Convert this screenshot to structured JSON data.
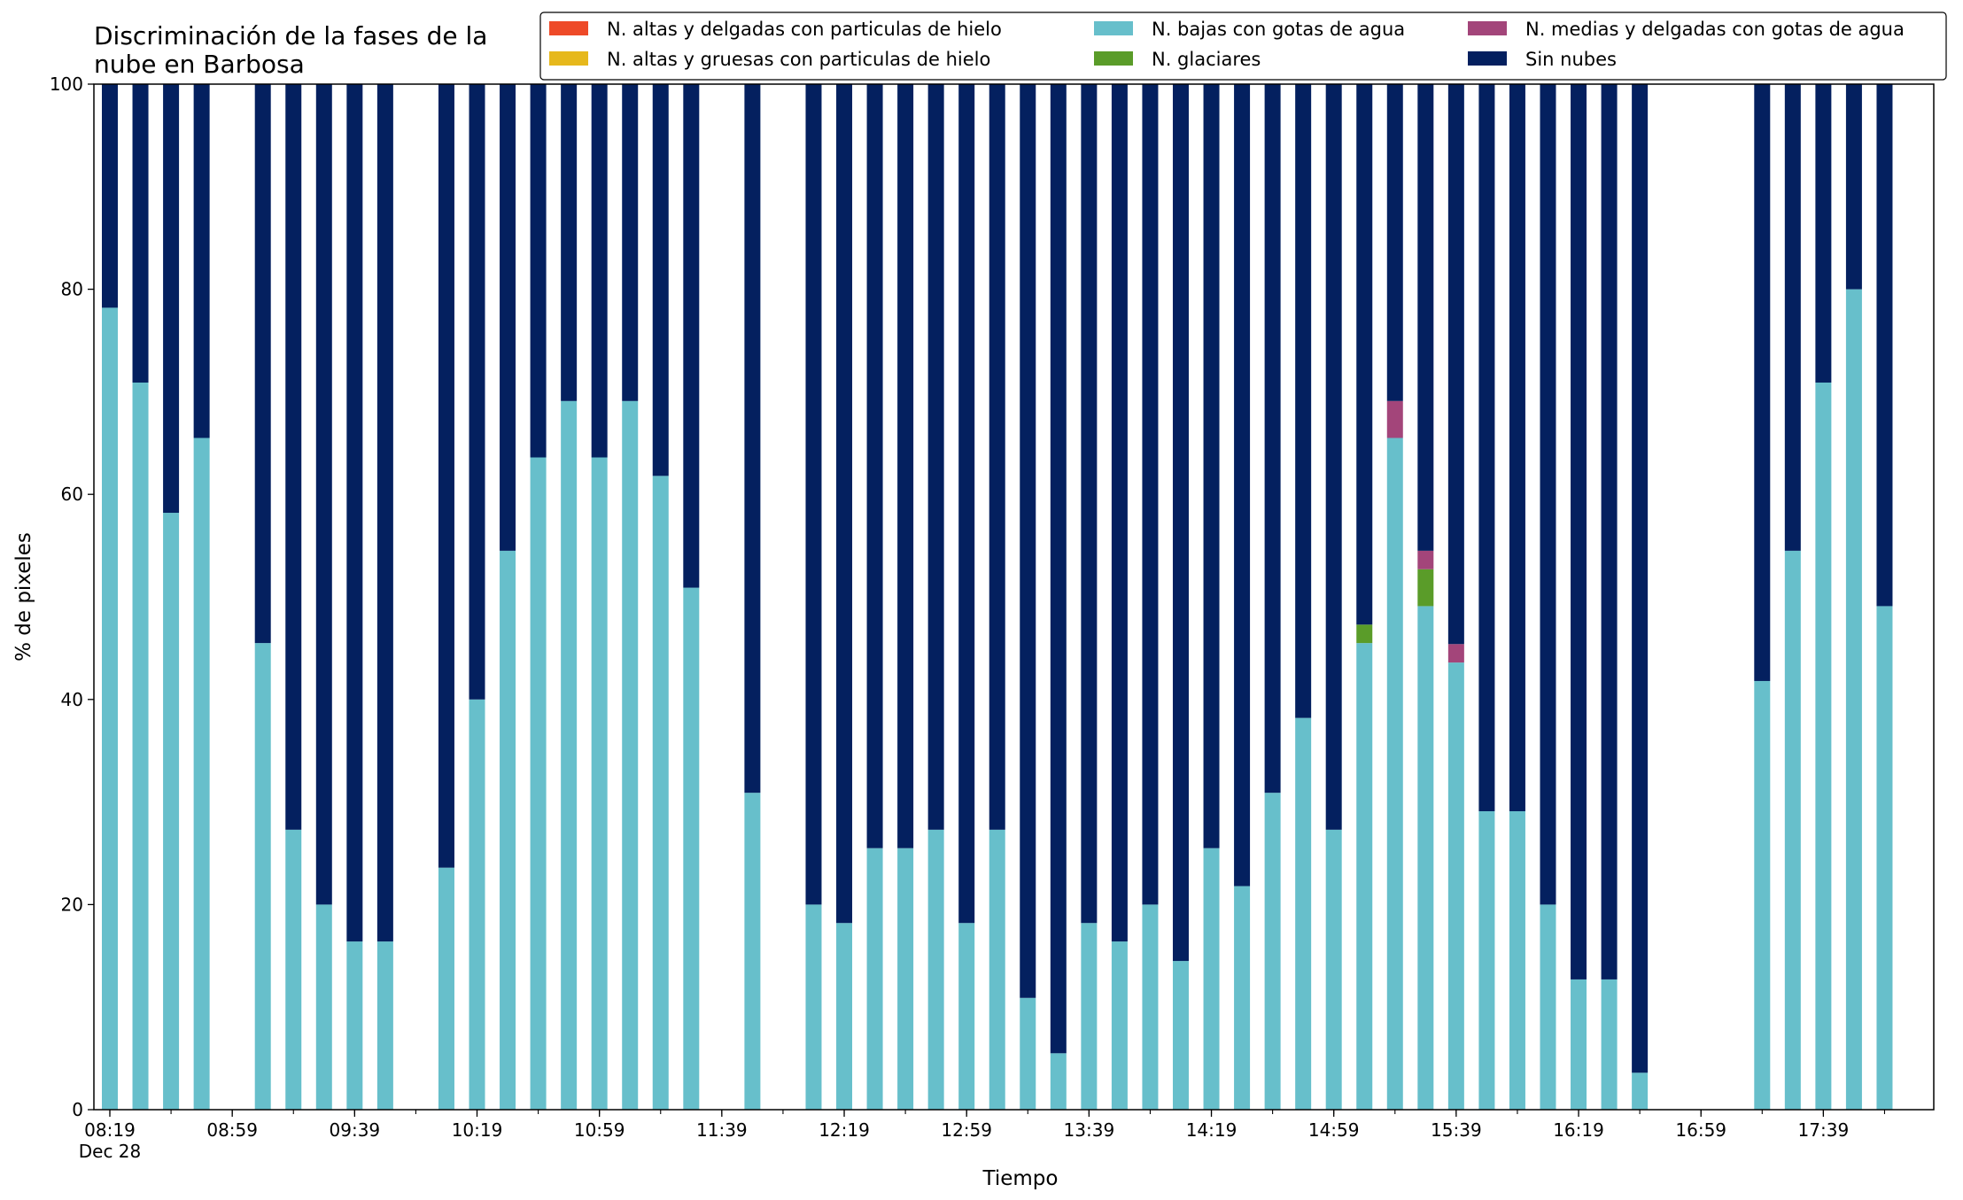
{
  "chart_data": {
    "type": "bar",
    "stacked": true,
    "title_lines": [
      "Discriminación de la fases de la",
      "nube en Barbosa"
    ],
    "xlabel": "Tiempo",
    "ylabel": "% de pixeles",
    "ylim": [
      0,
      100
    ],
    "yticks": [
      0,
      20,
      40,
      60,
      80,
      100
    ],
    "grid": false,
    "legend_position": "top-right",
    "x_start": "08:19",
    "x_end": "18:09",
    "bar_interval_minutes": 10,
    "xtick_labels": [
      "08:19",
      "08:59",
      "09:39",
      "10:19",
      "10:59",
      "11:39",
      "12:19",
      "12:59",
      "13:39",
      "14:19",
      "14:59",
      "15:39",
      "16:19",
      "16:59",
      "17:39"
    ],
    "xtick_sublabel": "Dec 28",
    "series": [
      {
        "name": "N. altas y delgadas con particulas de hielo",
        "color": "#ee4a28"
      },
      {
        "name": "N. altas y gruesas con particulas de hielo",
        "color": "#e6b81c"
      },
      {
        "name": "N. bajas con gotas de agua",
        "color": "#67bfcb"
      },
      {
        "name": "N. glaciares",
        "color": "#5a9c29"
      },
      {
        "name": "N. medias y delgadas con gotas de agua",
        "color": "#a3457a"
      },
      {
        "name": "Sin nubes",
        "color": "#04205f"
      }
    ],
    "data": [
      {
        "time": "08:19",
        "bajas": 78.2,
        "glaciares": 0,
        "medias": 0,
        "sin_nubes": 21.8
      },
      {
        "time": "08:29",
        "bajas": 70.9,
        "glaciares": 0,
        "medias": 0,
        "sin_nubes": 29.1
      },
      {
        "time": "08:39",
        "bajas": 58.2,
        "glaciares": 0,
        "medias": 0,
        "sin_nubes": 41.8
      },
      {
        "time": "08:49",
        "bajas": 65.5,
        "glaciares": 0,
        "medias": 0,
        "sin_nubes": 34.5
      },
      {
        "time": "09:09",
        "bajas": 45.5,
        "glaciares": 0,
        "medias": 0,
        "sin_nubes": 54.5
      },
      {
        "time": "09:19",
        "bajas": 27.3,
        "glaciares": 0,
        "medias": 0,
        "sin_nubes": 72.7
      },
      {
        "time": "09:29",
        "bajas": 20.0,
        "glaciares": 0,
        "medias": 0,
        "sin_nubes": 80.0
      },
      {
        "time": "09:39",
        "bajas": 16.4,
        "glaciares": 0,
        "medias": 0,
        "sin_nubes": 83.6
      },
      {
        "time": "09:49",
        "bajas": 16.4,
        "glaciares": 0,
        "medias": 0,
        "sin_nubes": 83.6
      },
      {
        "time": "10:09",
        "bajas": 23.6,
        "glaciares": 0,
        "medias": 0,
        "sin_nubes": 76.4
      },
      {
        "time": "10:19",
        "bajas": 40.0,
        "glaciares": 0,
        "medias": 0,
        "sin_nubes": 60.0
      },
      {
        "time": "10:29",
        "bajas": 54.5,
        "glaciares": 0,
        "medias": 0,
        "sin_nubes": 45.5
      },
      {
        "time": "10:39",
        "bajas": 63.6,
        "glaciares": 0,
        "medias": 0,
        "sin_nubes": 36.4
      },
      {
        "time": "10:49",
        "bajas": 69.1,
        "glaciares": 0,
        "medias": 0,
        "sin_nubes": 30.9
      },
      {
        "time": "10:59",
        "bajas": 63.6,
        "glaciares": 0,
        "medias": 0,
        "sin_nubes": 36.4
      },
      {
        "time": "11:09",
        "bajas": 69.1,
        "glaciares": 0,
        "medias": 0,
        "sin_nubes": 30.9
      },
      {
        "time": "11:19",
        "bajas": 61.8,
        "glaciares": 0,
        "medias": 0,
        "sin_nubes": 38.2
      },
      {
        "time": "11:29",
        "bajas": 50.9,
        "glaciares": 0,
        "medias": 0,
        "sin_nubes": 49.1
      },
      {
        "time": "11:49",
        "bajas": 30.9,
        "glaciares": 0,
        "medias": 0,
        "sin_nubes": 69.1
      },
      {
        "time": "12:09",
        "bajas": 20.0,
        "glaciares": 0,
        "medias": 0,
        "sin_nubes": 80.0
      },
      {
        "time": "12:19",
        "bajas": 18.2,
        "glaciares": 0,
        "medias": 0,
        "sin_nubes": 81.8
      },
      {
        "time": "12:29",
        "bajas": 25.5,
        "glaciares": 0,
        "medias": 0,
        "sin_nubes": 74.5
      },
      {
        "time": "12:39",
        "bajas": 25.5,
        "glaciares": 0,
        "medias": 0,
        "sin_nubes": 74.5
      },
      {
        "time": "12:49",
        "bajas": 27.3,
        "glaciares": 0,
        "medias": 0,
        "sin_nubes": 72.7
      },
      {
        "time": "12:59",
        "bajas": 18.2,
        "glaciares": 0,
        "medias": 0,
        "sin_nubes": 81.8
      },
      {
        "time": "13:09",
        "bajas": 27.3,
        "glaciares": 0,
        "medias": 0,
        "sin_nubes": 72.7
      },
      {
        "time": "13:19",
        "bajas": 10.9,
        "glaciares": 0,
        "medias": 0,
        "sin_nubes": 89.1
      },
      {
        "time": "13:29",
        "bajas": 5.5,
        "glaciares": 0,
        "medias": 0,
        "sin_nubes": 94.5
      },
      {
        "time": "13:39",
        "bajas": 18.2,
        "glaciares": 0,
        "medias": 0,
        "sin_nubes": 81.8
      },
      {
        "time": "13:49",
        "bajas": 16.4,
        "glaciares": 0,
        "medias": 0,
        "sin_nubes": 83.6
      },
      {
        "time": "13:59",
        "bajas": 20.0,
        "glaciares": 0,
        "medias": 0,
        "sin_nubes": 80.0
      },
      {
        "time": "14:09",
        "bajas": 14.5,
        "glaciares": 0,
        "medias": 0,
        "sin_nubes": 85.5
      },
      {
        "time": "14:19",
        "bajas": 25.5,
        "glaciares": 0,
        "medias": 0,
        "sin_nubes": 74.5
      },
      {
        "time": "14:29",
        "bajas": 21.8,
        "glaciares": 0,
        "medias": 0,
        "sin_nubes": 78.2
      },
      {
        "time": "14:39",
        "bajas": 30.9,
        "glaciares": 0,
        "medias": 0,
        "sin_nubes": 69.1
      },
      {
        "time": "14:49",
        "bajas": 38.2,
        "glaciares": 0,
        "medias": 0,
        "sin_nubes": 61.8
      },
      {
        "time": "14:59",
        "bajas": 27.3,
        "glaciares": 0,
        "medias": 0,
        "sin_nubes": 72.7
      },
      {
        "time": "15:09",
        "bajas": 45.5,
        "glaciares": 1.8,
        "medias": 0,
        "sin_nubes": 52.7
      },
      {
        "time": "15:19",
        "bajas": 65.5,
        "glaciares": 0,
        "medias": 3.6,
        "sin_nubes": 30.9
      },
      {
        "time": "15:29",
        "bajas": 49.1,
        "glaciares": 3.6,
        "medias": 1.8,
        "sin_nubes": 45.5
      },
      {
        "time": "15:39",
        "bajas": 43.6,
        "glaciares": 0,
        "medias": 1.8,
        "sin_nubes": 54.6
      },
      {
        "time": "15:49",
        "bajas": 29.1,
        "glaciares": 0,
        "medias": 0,
        "sin_nubes": 70.9
      },
      {
        "time": "15:59",
        "bajas": 29.1,
        "glaciares": 0,
        "medias": 0,
        "sin_nubes": 70.9
      },
      {
        "time": "16:09",
        "bajas": 20.0,
        "glaciares": 0,
        "medias": 0,
        "sin_nubes": 80.0
      },
      {
        "time": "16:19",
        "bajas": 12.7,
        "glaciares": 0,
        "medias": 0,
        "sin_nubes": 87.3
      },
      {
        "time": "16:29",
        "bajas": 12.7,
        "glaciares": 0,
        "medias": 0,
        "sin_nubes": 87.3
      },
      {
        "time": "16:39",
        "bajas": 3.6,
        "glaciares": 0,
        "medias": 0,
        "sin_nubes": 96.4
      },
      {
        "time": "17:19",
        "bajas": 41.8,
        "glaciares": 0,
        "medias": 0,
        "sin_nubes": 58.2
      },
      {
        "time": "17:29",
        "bajas": 54.5,
        "glaciares": 0,
        "medias": 0,
        "sin_nubes": 45.5
      },
      {
        "time": "17:39",
        "bajas": 70.9,
        "glaciares": 0,
        "medias": 0,
        "sin_nubes": 29.1
      },
      {
        "time": "17:49",
        "bajas": 80.0,
        "glaciares": 0,
        "medias": 0,
        "sin_nubes": 20.0
      },
      {
        "time": "17:59",
        "bajas": 49.1,
        "glaciares": 0,
        "medias": 0,
        "sin_nubes": 50.9
      }
    ]
  }
}
